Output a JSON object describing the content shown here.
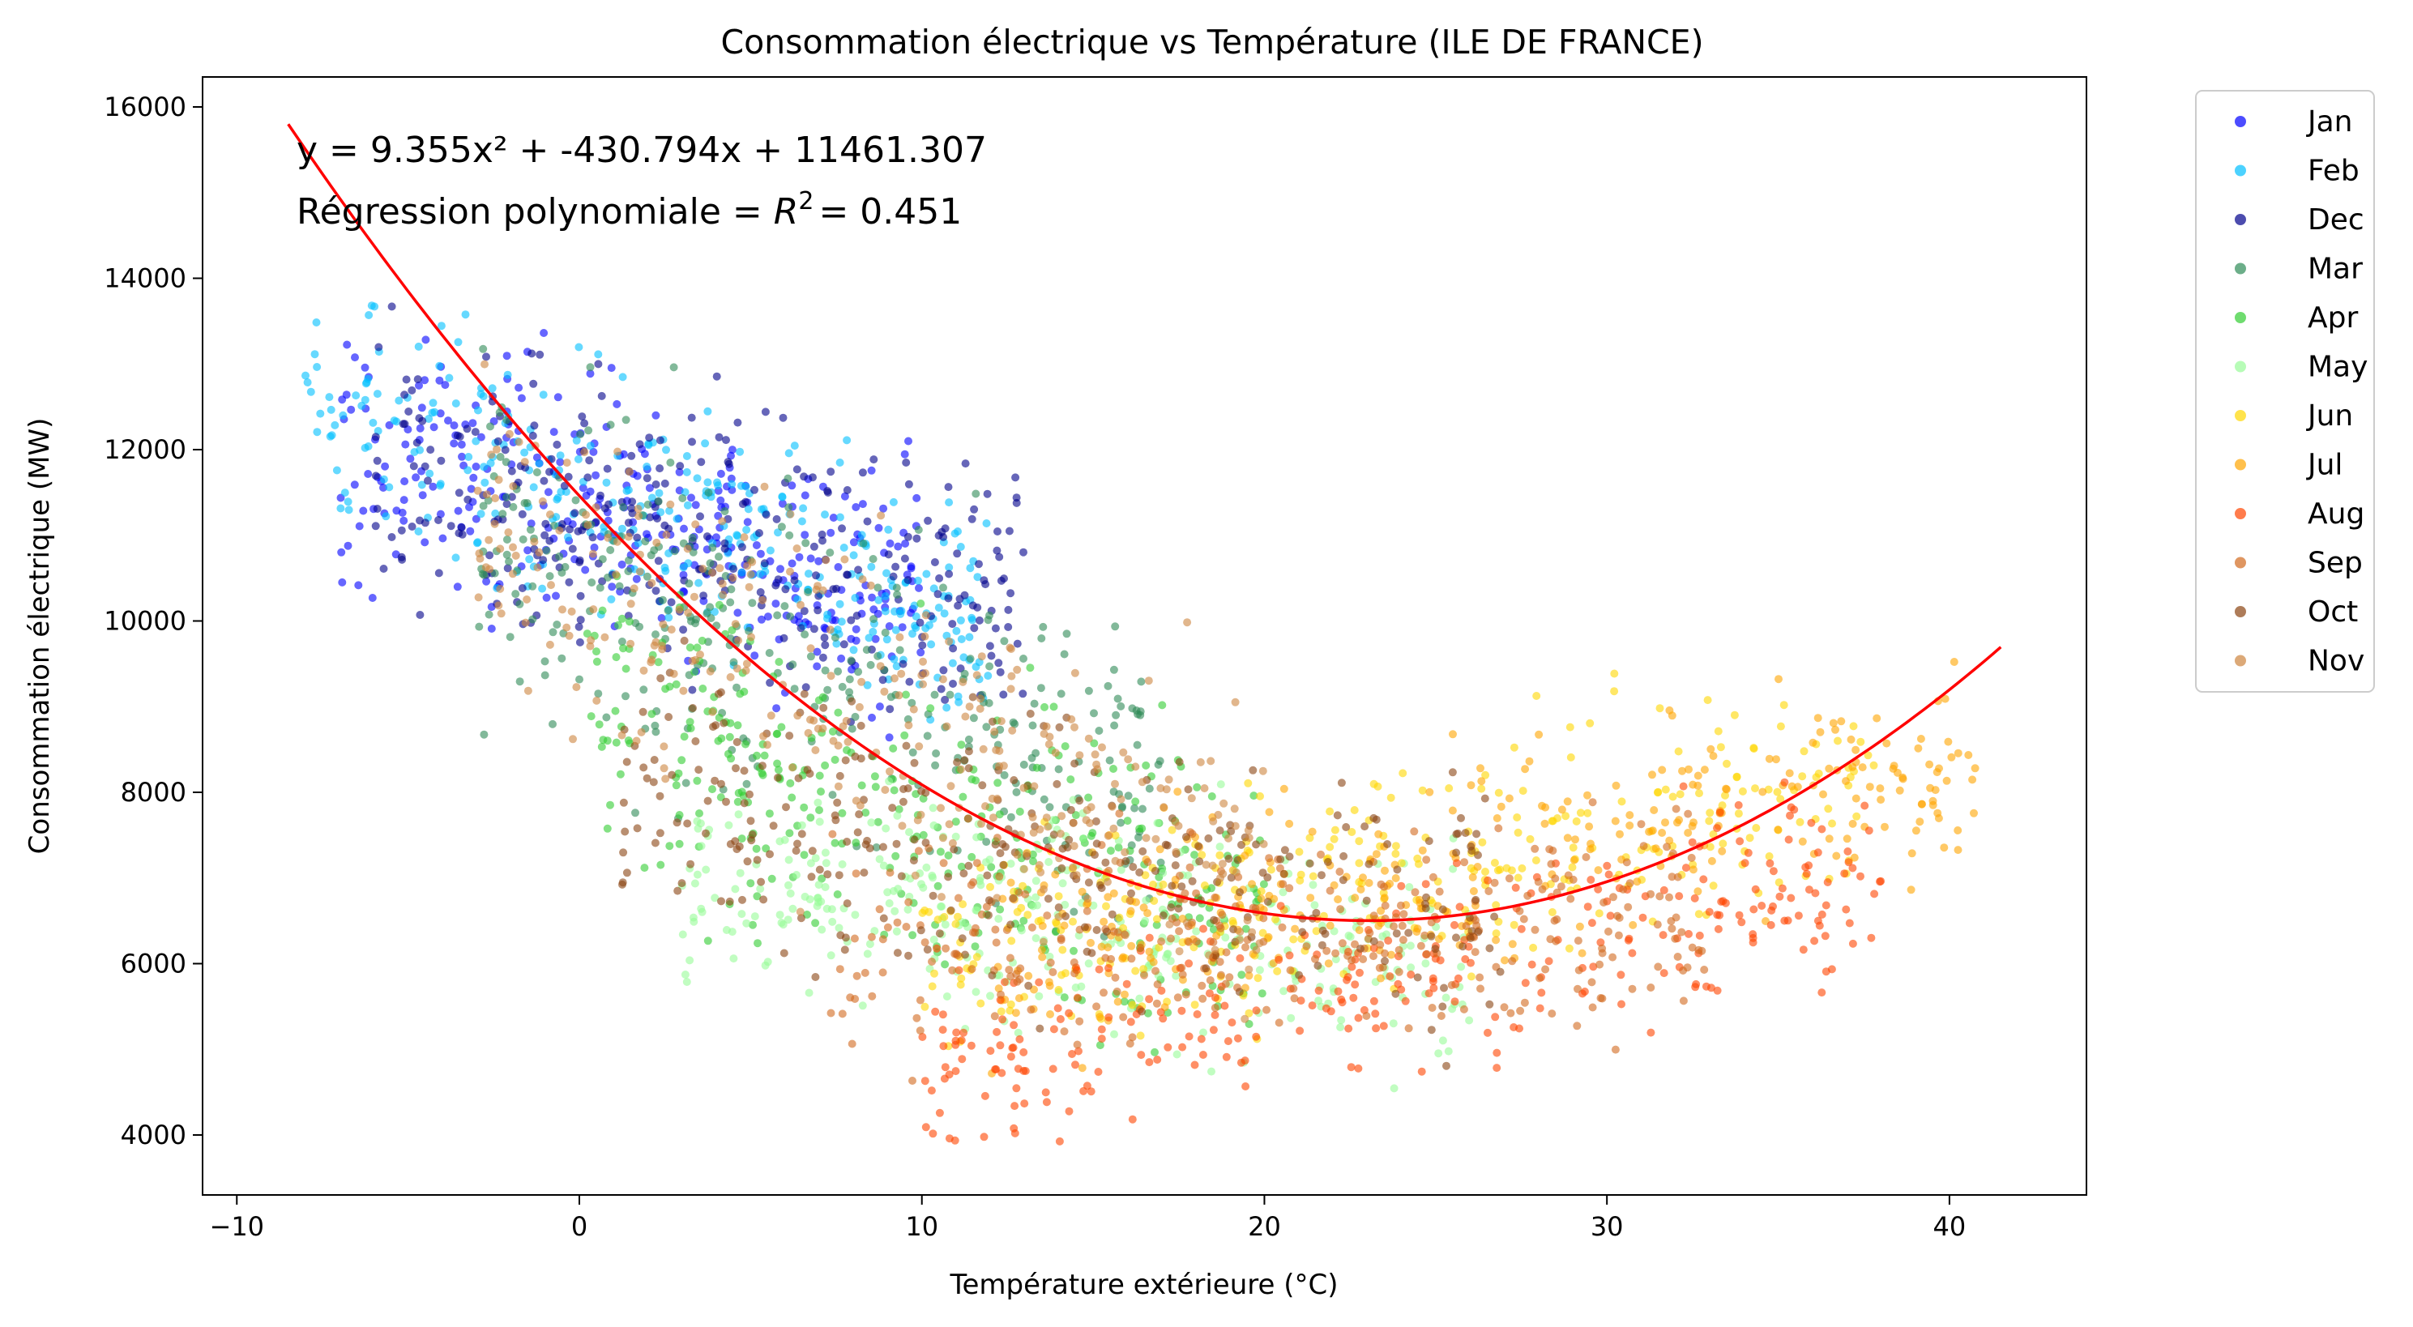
{
  "chart_data": {
    "type": "scatter",
    "title": "Consommation électrique vs Température (ILE DE FRANCE)",
    "xlabel": "Température extérieure (°C)",
    "ylabel": "Consommation électrique (MW)",
    "xlim": [
      -11,
      44
    ],
    "ylim": [
      3300,
      16350
    ],
    "x_ticks": [
      -10,
      0,
      10,
      20,
      30,
      40
    ],
    "y_ticks": [
      4000,
      6000,
      8000,
      10000,
      12000,
      14000,
      16000
    ],
    "grid": false,
    "legend_position": "outside-top-right",
    "series": [
      {
        "name": "Jan",
        "color": "#0000ff",
        "x_range": [
          -7,
          10
        ],
        "y_center": [
          12000,
          10400
        ],
        "y_spread": 1500
      },
      {
        "name": "Feb",
        "color": "#00bfff",
        "x_range": [
          -8,
          12
        ],
        "y_center": [
          12500,
          10000
        ],
        "y_spread": 1400
      },
      {
        "name": "Dec",
        "color": "#00008b",
        "x_range": [
          -6,
          13
        ],
        "y_center": [
          11800,
          10200
        ],
        "y_spread": 1600
      },
      {
        "name": "Mar",
        "color": "#2e8b57",
        "x_range": [
          -3,
          17
        ],
        "y_center": [
          11000,
          8000
        ],
        "y_spread": 2000
      },
      {
        "name": "Apr",
        "color": "#32cd32",
        "x_range": [
          0,
          20
        ],
        "y_center": [
          9000,
          6500
        ],
        "y_spread": 1800
      },
      {
        "name": "May",
        "color": "#98fb98",
        "x_range": [
          3,
          26
        ],
        "y_center": [
          7000,
          6000
        ],
        "y_spread": 1300
      },
      {
        "name": "Jun",
        "color": "#ffd700",
        "x_range": [
          10,
          38
        ],
        "y_center": [
          6000,
          8200
        ],
        "y_spread": 1300
      },
      {
        "name": "Jul",
        "color": "#ffa500",
        "x_range": [
          12,
          41
        ],
        "y_center": [
          6000,
          8400
        ],
        "y_spread": 1300
      },
      {
        "name": "Aug",
        "color": "#ff4500",
        "x_range": [
          10,
          38
        ],
        "y_center": [
          4800,
          7000
        ],
        "y_spread": 1100
      },
      {
        "name": "Sep",
        "color": "#d2691e",
        "x_range": [
          7,
          33
        ],
        "y_center": [
          6200,
          6600
        ],
        "y_spread": 1300
      },
      {
        "name": "Oct",
        "color": "#8b4513",
        "x_range": [
          1,
          27
        ],
        "y_center": [
          8200,
          6500
        ],
        "y_spread": 1600
      },
      {
        "name": "Nov",
        "color": "#cd853f",
        "x_range": [
          -3,
          20
        ],
        "y_center": [
          11000,
          7000
        ],
        "y_spread": 1800
      }
    ],
    "regression": {
      "color": "#ff0000",
      "a": 9.355,
      "b": -430.794,
      "c": 11461.307,
      "x_range": [
        -8.5,
        41.5
      ],
      "equation_text": "y = 9.355x² + -430.794x + 11461.307",
      "r2_prefix": "Régression polynomiale = ",
      "r2_symbol": "R",
      "r2_exponent": "2",
      "r2_value": "= 0.451"
    }
  }
}
